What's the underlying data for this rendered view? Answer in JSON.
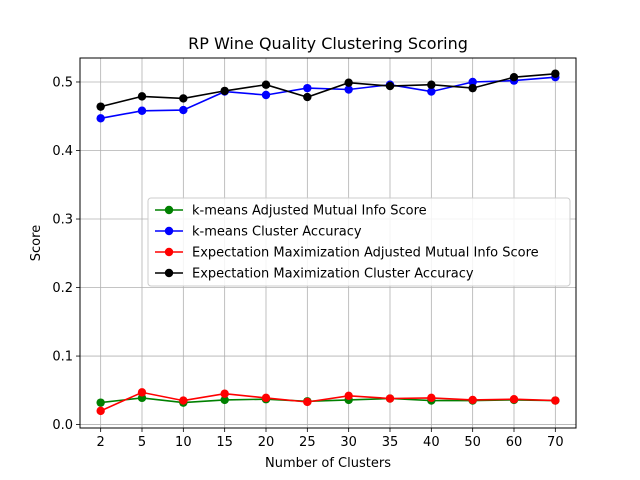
{
  "chart_data": {
    "type": "line",
    "title": "RP Wine Quality  Clustering Scoring",
    "xlabel": "Number of Clusters",
    "ylabel": "Score",
    "categories": [
      "2",
      "5",
      "10",
      "15",
      "20",
      "25",
      "30",
      "35",
      "40",
      "50",
      "60",
      "70"
    ],
    "ylim": [
      -0.005,
      0.535
    ],
    "yticks": [
      "0.0",
      "0.1",
      "0.2",
      "0.3",
      "0.4",
      "0.5"
    ],
    "grid": true,
    "legend_position": "center-right",
    "series": [
      {
        "name": "k-means Adjusted Mutual Info Score",
        "color": "#008000",
        "values": [
          0.032,
          0.039,
          0.032,
          0.036,
          0.037,
          0.034,
          0.036,
          0.038,
          0.035,
          0.035,
          0.036,
          0.035
        ]
      },
      {
        "name": "k-means Cluster Accuracy",
        "color": "#0000ff",
        "values": [
          0.447,
          0.458,
          0.459,
          0.486,
          0.481,
          0.491,
          0.489,
          0.496,
          0.486,
          0.5,
          0.502,
          0.507
        ]
      },
      {
        "name": "Expectation Maximization Adjusted Mutual Info Score",
        "color": "#ff0000",
        "values": [
          0.02,
          0.047,
          0.035,
          0.045,
          0.039,
          0.033,
          0.042,
          0.038,
          0.039,
          0.036,
          0.037,
          0.035
        ]
      },
      {
        "name": "Expectation Maximization Cluster Accuracy",
        "color": "#000000",
        "values": [
          0.464,
          0.479,
          0.476,
          0.487,
          0.496,
          0.478,
          0.499,
          0.494,
          0.496,
          0.491,
          0.507,
          0.512
        ]
      }
    ]
  }
}
